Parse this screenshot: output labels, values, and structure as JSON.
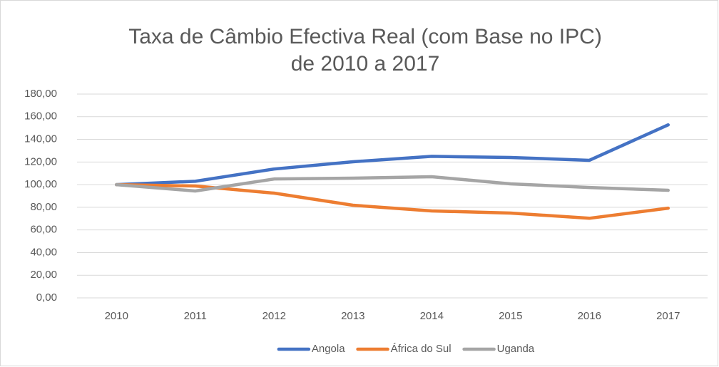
{
  "chart_data": {
    "type": "line",
    "title": [
      "Taxa de Câmbio Efectiva Real (com Base no IPC)",
      "de 2010 a 2017"
    ],
    "categories": [
      "2010",
      "2011",
      "2012",
      "2013",
      "2014",
      "2015",
      "2016",
      "2017"
    ],
    "series": [
      {
        "name": "Angola",
        "color": "#4472c4",
        "values": [
          100,
          103,
          113.8,
          120.2,
          125,
          124,
          121.5,
          152.8
        ]
      },
      {
        "name": "África do Sul",
        "color": "#ed7d31",
        "values": [
          100,
          98.8,
          92.5,
          81.8,
          76.8,
          74.9,
          70.3,
          79.2
        ]
      },
      {
        "name": "Uganda",
        "color": "#a5a5a5",
        "values": [
          100,
          94.4,
          105,
          105.7,
          107,
          100.7,
          97.5,
          95
        ]
      }
    ],
    "ylim": [
      0,
      180
    ],
    "yticks": [
      {
        "value": 0,
        "label": "0,00"
      },
      {
        "value": 20,
        "label": "20,00"
      },
      {
        "value": 40,
        "label": "40,00"
      },
      {
        "value": 60,
        "label": "60,00"
      },
      {
        "value": 80,
        "label": "80,00"
      },
      {
        "value": 100,
        "label": "100,00"
      },
      {
        "value": 120,
        "label": "120,00"
      },
      {
        "value": 140,
        "label": "140,00"
      },
      {
        "value": 160,
        "label": "160,00"
      },
      {
        "value": 180,
        "label": "180,00"
      }
    ],
    "grid": true,
    "legend": "bottom"
  }
}
